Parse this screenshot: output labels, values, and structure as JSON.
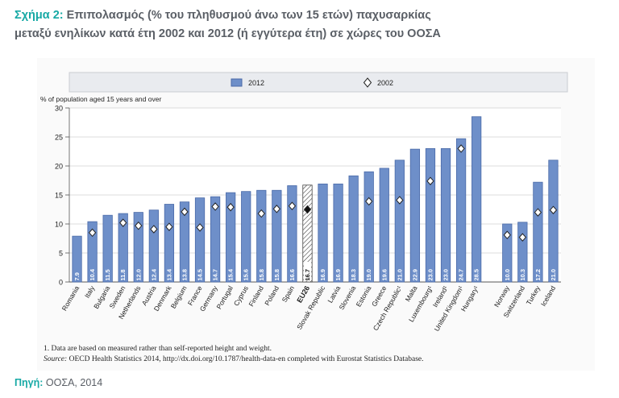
{
  "title": {
    "prefix": "Σχήμα 2:",
    "line1": "Επιπολασμός (% του πληθυσμού άνω των 15 ετών) παχυσαρκίας",
    "line2": "μεταξύ ενηλίκων κατά έτη 2002 και 2012 (ή εγγύτερα έτη) σε χώρες του ΟΟΣΑ"
  },
  "footnotes": {
    "note1": "1.  Data are based on measured rather than self-reported height and weight.",
    "source_label": "Source:",
    "source_text": " OECD Health Statistics 2014, http://dx.doi.org/10.1787/health-data-en completed with Eurostat Statistics Database."
  },
  "page_source": {
    "label": "Πηγή:",
    "text": "ΟΟΣΑ, 2014"
  },
  "chart_data": {
    "type": "bar",
    "ylabel": "% of population aged 15 years and over",
    "ylim": [
      0,
      30
    ],
    "yticks": [
      0,
      5,
      10,
      15,
      20,
      25,
      30
    ],
    "grid": true,
    "legend_position": "top",
    "colors": {
      "bar": "#6e8fc9",
      "bar_edge": "#4a6aa8",
      "eu_bar_hatch": "#333333"
    },
    "highlight_category": "EU26",
    "categories": [
      "Romania",
      "Italy",
      "Bulgaria",
      "Sweden",
      "Netherlands",
      "Austria",
      "Denmark",
      "Belgium",
      "France",
      "Germany",
      "Portugal",
      "Cyprus",
      "Finland",
      "Poland",
      "Spain",
      "EU26",
      "Slovak Republic",
      "Latvia",
      "Slovenia",
      "Estonia",
      "Greece",
      "Czech Republic¹",
      "Malta",
      "Luxembourg¹",
      "Ireland¹",
      "United Kingdom¹",
      "Hungary¹",
      "",
      "Norway",
      "Switzerland",
      "Turkey",
      "Iceland"
    ],
    "series": [
      {
        "name": "2012",
        "marker": "bar",
        "values": [
          7.9,
          10.4,
          11.5,
          11.8,
          12.0,
          12.4,
          13.4,
          13.8,
          14.5,
          14.7,
          15.4,
          15.6,
          15.8,
          15.8,
          16.6,
          16.7,
          16.9,
          16.9,
          18.3,
          19.0,
          19.6,
          21.0,
          22.9,
          23.0,
          23.0,
          24.7,
          28.5,
          null,
          10.0,
          10.3,
          17.2,
          21.0
        ],
        "labels": [
          "7.9",
          "10.4",
          "11.5",
          "11.8",
          "12.0",
          "12.4",
          "13.4",
          "13.8",
          "14.5",
          "14.7",
          "15.4",
          "15.6",
          "15.8",
          "15.8",
          "16.6",
          "16.7",
          "16.9",
          "16.9",
          "18.3",
          "19.0",
          "19.6",
          "21.0",
          "22.9",
          "23.0",
          "23.0",
          "24.7",
          "28.5",
          "",
          "10.0",
          "10.3",
          "17.2",
          "21.0"
        ]
      },
      {
        "name": "2002",
        "marker": "diamond",
        "values": [
          null,
          8.5,
          null,
          10.2,
          9.7,
          9.1,
          9.5,
          12.1,
          9.4,
          13.0,
          12.9,
          null,
          11.8,
          12.6,
          13.1,
          12.5,
          null,
          null,
          null,
          13.9,
          null,
          14.1,
          null,
          17.4,
          null,
          23.0,
          null,
          null,
          8.1,
          7.7,
          12.0,
          12.4
        ]
      }
    ]
  }
}
